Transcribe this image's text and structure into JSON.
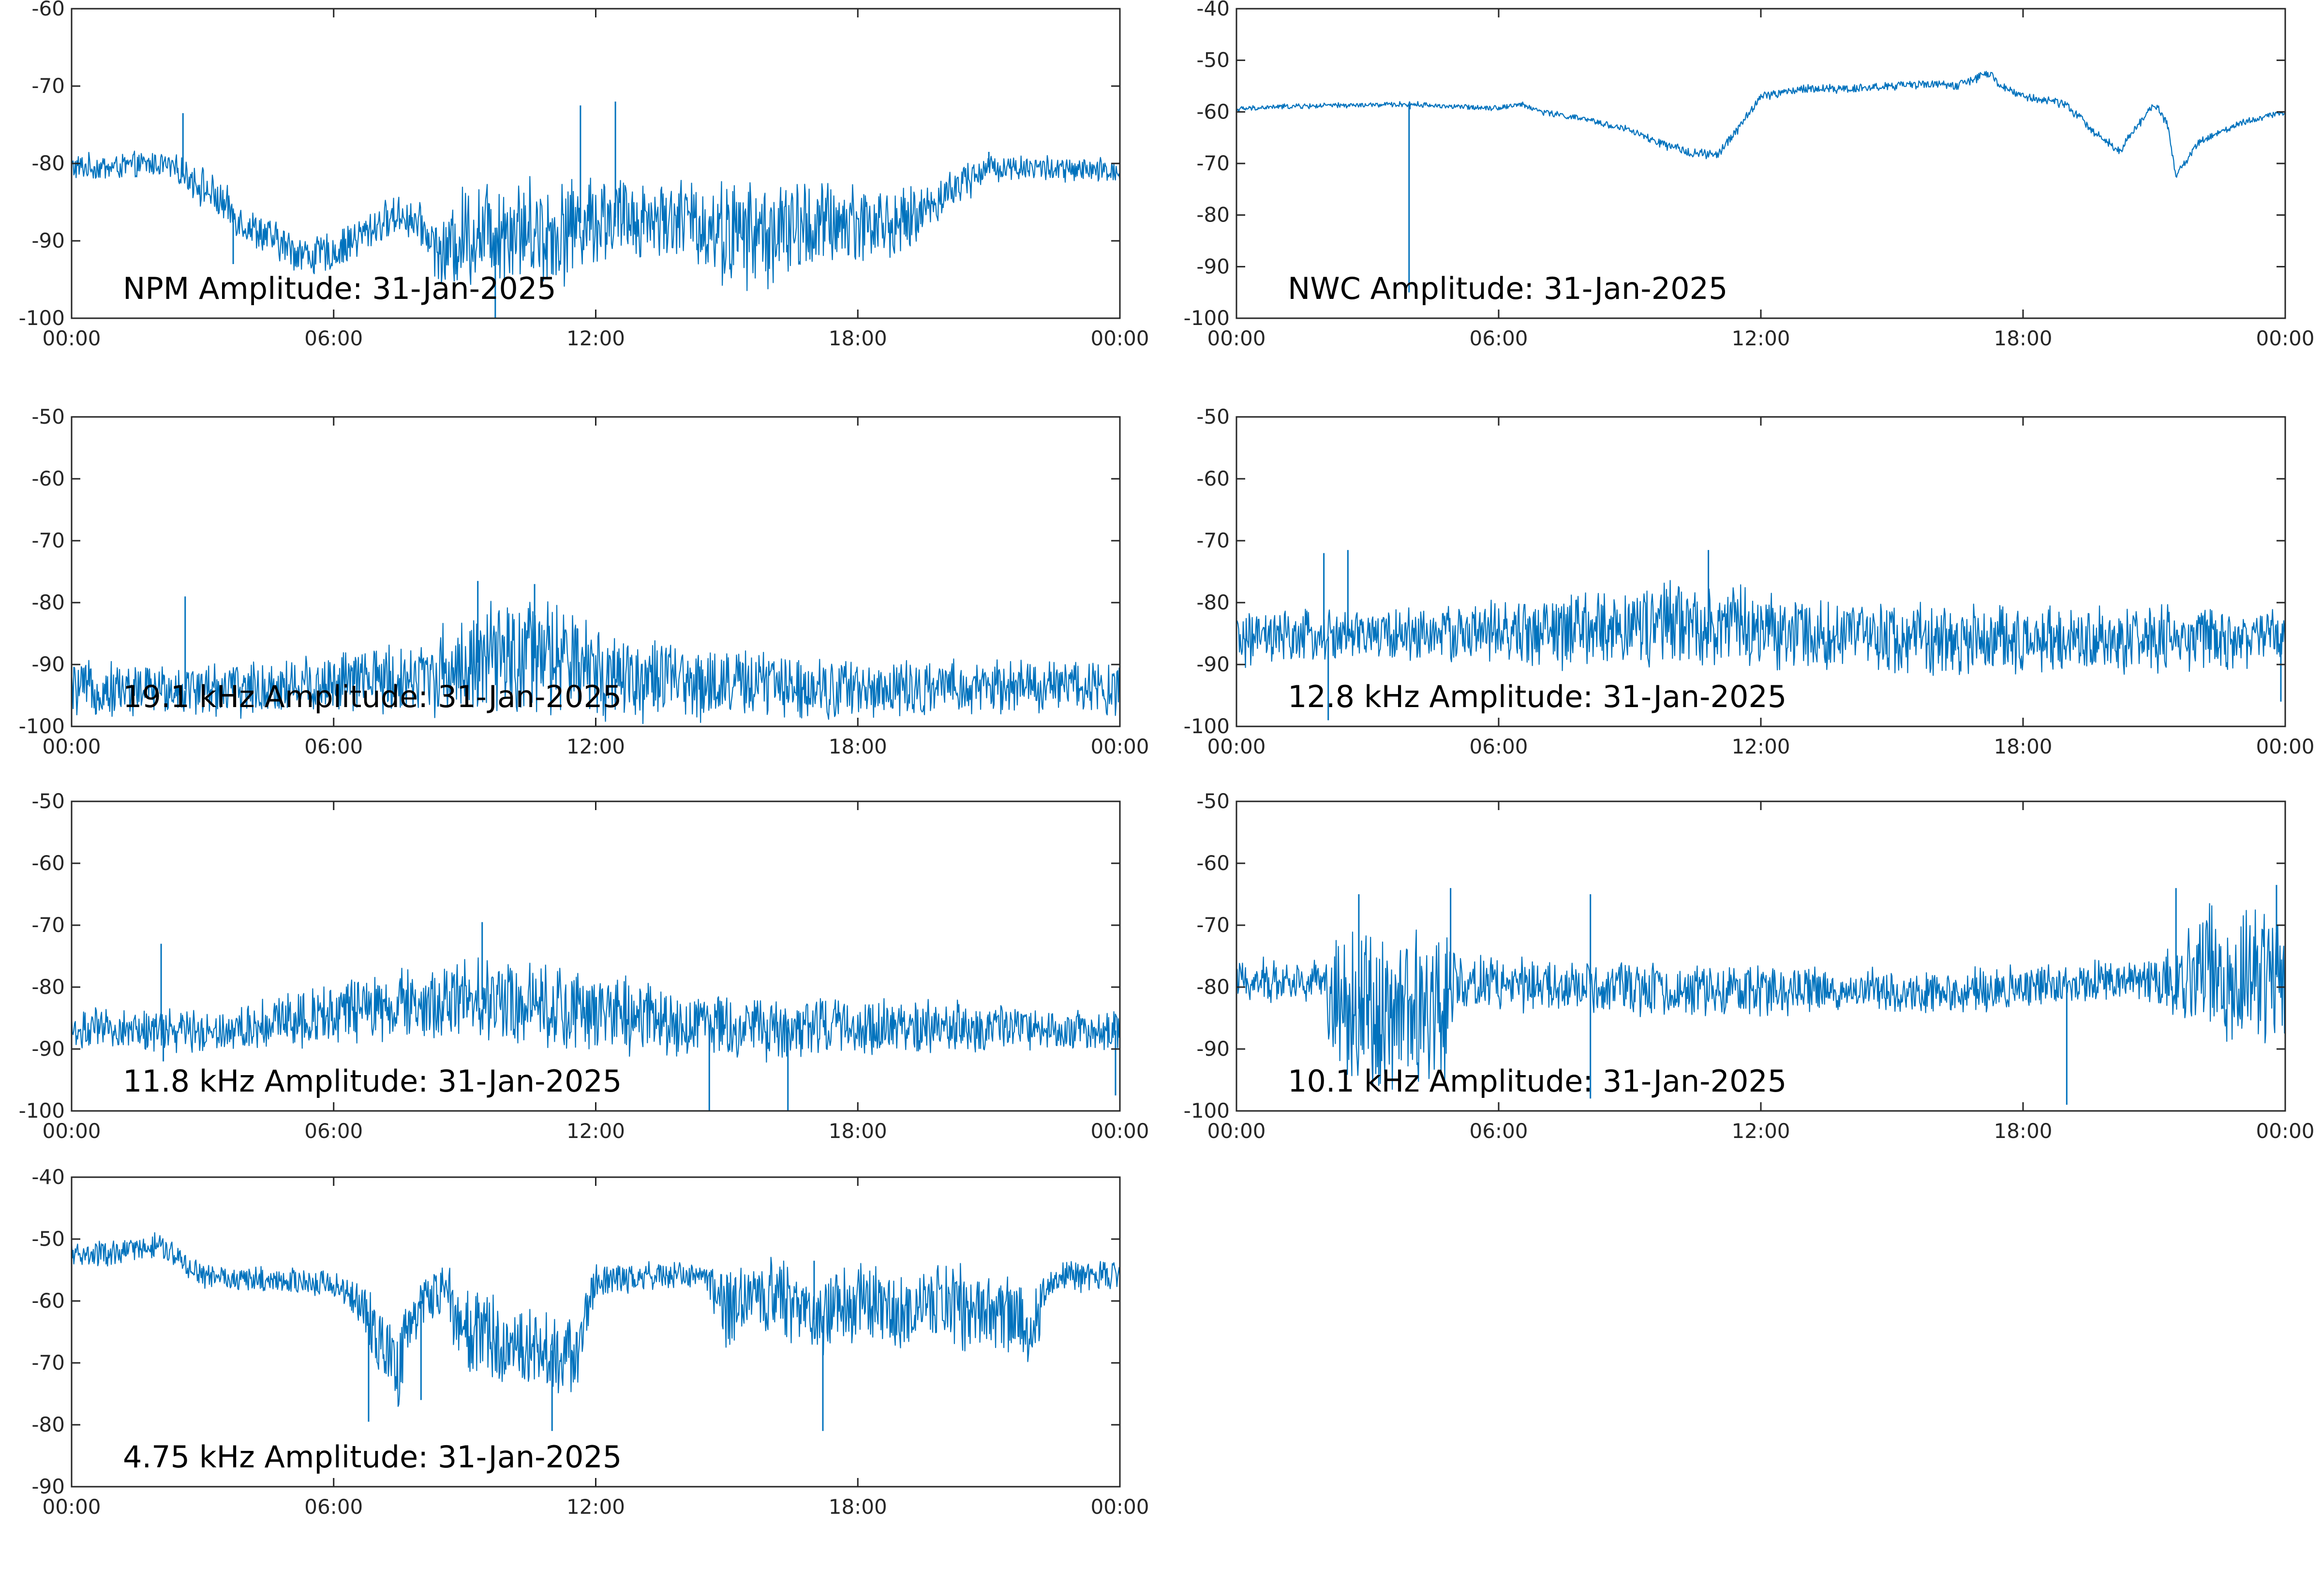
{
  "figure": {
    "background": "#ffffff",
    "line_color": "#0072BD"
  },
  "chart_data": [
    {
      "type": "line",
      "title": "NPM Amplitude: 31-Jan-2025",
      "xlabel": "",
      "ylabel": "",
      "xlim": [
        "00:00",
        "24:00"
      ],
      "xtick_labels": [
        "00:00",
        "06:00",
        "12:00",
        "18:00",
        "00:00"
      ],
      "ylim": [
        -100,
        -60
      ],
      "ytick_labels": [
        "-100",
        "-90",
        "-80",
        "-70",
        "-60"
      ],
      "grid": false,
      "series": [
        {
          "x_hours": [
            0,
            1,
            2,
            2.5,
            3,
            4,
            5,
            5.5,
            6,
            7,
            7.5,
            8,
            8.5,
            9,
            10,
            11,
            12,
            13,
            14,
            15,
            16,
            17,
            18,
            19,
            20,
            20.5,
            21,
            22,
            23,
            24
          ],
          "center": [
            -80.5,
            -80.5,
            -80,
            -81,
            -83,
            -88,
            -91,
            -92,
            -91.5,
            -88,
            -86.5,
            -88,
            -92,
            -89,
            -88,
            -89,
            -87,
            -87,
            -87,
            -89,
            -89,
            -88,
            -87.5,
            -88,
            -84,
            -82,
            -80.5,
            -80.5,
            -81,
            -81
          ],
          "spread": [
            2,
            2,
            2,
            2,
            3,
            3,
            3,
            3,
            3,
            3,
            3,
            3,
            5,
            8,
            8,
            8,
            7,
            6,
            6,
            8,
            8,
            7,
            6,
            5,
            3,
            3,
            2,
            2,
            2,
            2
          ],
          "spikes": [
            {
              "x_hours": 2.55,
              "y": -73.5
            },
            {
              "x_hours": 3.7,
              "y": -93
            },
            {
              "x_hours": 11.65,
              "y": -72.5
            },
            {
              "x_hours": 12.45,
              "y": -72
            },
            {
              "x_hours": 9.7,
              "y": -100
            },
            {
              "x_hours": 21.0,
              "y": -78.5
            }
          ]
        }
      ]
    },
    {
      "type": "line",
      "title": "NWC Amplitude: 31-Jan-2025",
      "xlabel": "",
      "ylabel": "",
      "xlim": [
        "00:00",
        "24:00"
      ],
      "xtick_labels": [
        "00:00",
        "06:00",
        "12:00",
        "18:00",
        "00:00"
      ],
      "ylim": [
        -100,
        -40
      ],
      "ytick_labels": [
        "-100",
        "-90",
        "-80",
        "-70",
        "-60",
        "-50",
        "-40"
      ],
      "grid": false,
      "series": [
        {
          "x_hours": [
            0,
            1,
            2,
            3,
            4,
            5,
            6,
            6.5,
            7,
            8,
            9,
            9.5,
            10,
            10.5,
            11,
            11.5,
            12,
            13,
            14,
            15,
            16,
            16.5,
            17.2,
            17.5,
            18,
            19,
            19.5,
            20.2,
            20.6,
            21,
            21.3,
            21.5,
            22,
            23,
            24
          ],
          "center": [
            -59.5,
            -59,
            -58.8,
            -58.7,
            -58.5,
            -59,
            -59.2,
            -58.5,
            -60,
            -61.5,
            -63.5,
            -65.5,
            -67,
            -68,
            -68.5,
            -63,
            -57,
            -55.5,
            -55.5,
            -55,
            -54.5,
            -55,
            -52.5,
            -55,
            -57,
            -58.5,
            -63,
            -67.5,
            -63,
            -58.5,
            -62,
            -72.5,
            -66,
            -62,
            -60
          ],
          "spread": [
            0.6,
            0.6,
            0.6,
            0.6,
            0.6,
            0.6,
            0.6,
            0.6,
            0.7,
            0.7,
            0.8,
            1,
            1,
            1.2,
            1.2,
            1,
            1,
            1,
            1,
            1,
            1,
            1,
            1,
            1,
            1,
            1,
            1,
            1,
            1,
            1,
            1,
            1,
            0.8,
            0.7,
            0.7
          ],
          "spikes": [
            {
              "x_hours": 3.95,
              "y": -95
            },
            {
              "x_hours": 3.97,
              "y": -59.5
            }
          ]
        }
      ]
    },
    {
      "type": "line",
      "title": "19.1 kHz Amplitude: 31-Jan-2025",
      "xlabel": "",
      "ylabel": "",
      "xlim": [
        "00:00",
        "24:00"
      ],
      "xtick_labels": [
        "00:00",
        "06:00",
        "12:00",
        "18:00",
        "00:00"
      ],
      "ylim": [
        -100,
        -50
      ],
      "ytick_labels": [
        "-100",
        "-90",
        "-80",
        "-70",
        "-60",
        "-50"
      ],
      "grid": false,
      "series": [
        {
          "x_hours": [
            0,
            2,
            4,
            6,
            8,
            9,
            10,
            11,
            12,
            13,
            14,
            16,
            18,
            20,
            22,
            24
          ],
          "center": [
            -94,
            -94,
            -94,
            -93,
            -92,
            -90,
            -89,
            -89,
            -91,
            -92,
            -93,
            -93,
            -94,
            -94,
            -93.5,
            -93.5
          ],
          "spread": [
            5,
            5,
            5,
            6,
            7,
            9,
            11,
            11,
            9,
            8,
            7,
            6,
            6,
            5,
            5,
            5
          ],
          "spikes": [
            {
              "x_hours": 2.6,
              "y": -79
            },
            {
              "x_hours": 9.3,
              "y": -76.5
            },
            {
              "x_hours": 10.6,
              "y": -77
            }
          ]
        }
      ]
    },
    {
      "type": "line",
      "title": "12.8 kHz Amplitude: 31-Jan-2025",
      "xlabel": "",
      "ylabel": "",
      "xlim": [
        "00:00",
        "24:00"
      ],
      "xtick_labels": [
        "00:00",
        "06:00",
        "12:00",
        "18:00",
        "00:00"
      ],
      "ylim": [
        -100,
        -50
      ],
      "ytick_labels": [
        "-100",
        "-90",
        "-80",
        "-70",
        "-60",
        "-50"
      ],
      "grid": false,
      "series": [
        {
          "x_hours": [
            0,
            2,
            4,
            6,
            8,
            9,
            10,
            11,
            12,
            13,
            14,
            16,
            18,
            20,
            22,
            24
          ],
          "center": [
            -86,
            -85.5,
            -85,
            -85,
            -84.5,
            -84,
            -83.5,
            -83.5,
            -84.5,
            -85,
            -85.5,
            -86,
            -86,
            -86,
            -86,
            -85.5
          ],
          "spread": [
            5,
            5,
            5,
            6,
            7,
            8,
            8,
            8,
            7,
            7,
            7,
            7,
            6,
            6,
            6,
            5
          ],
          "spikes": [
            {
              "x_hours": 2.0,
              "y": -72
            },
            {
              "x_hours": 2.1,
              "y": -99
            },
            {
              "x_hours": 2.55,
              "y": -71.5
            },
            {
              "x_hours": 10.8,
              "y": -71.5
            },
            {
              "x_hours": 23.9,
              "y": -96
            }
          ]
        }
      ]
    },
    {
      "type": "line",
      "title": "11.8 kHz Amplitude: 31-Jan-2025",
      "xlabel": "",
      "ylabel": "",
      "xlim": [
        "00:00",
        "24:00"
      ],
      "xtick_labels": [
        "00:00",
        "06:00",
        "12:00",
        "18:00",
        "00:00"
      ],
      "ylim": [
        -100,
        -50
      ],
      "ytick_labels": [
        "-100",
        "-90",
        "-80",
        "-70",
        "-60",
        "-50"
      ],
      "grid": false,
      "series": [
        {
          "x_hours": [
            0,
            2,
            3,
            4,
            5,
            6,
            8,
            9,
            10,
            11,
            12,
            13,
            14,
            16,
            18,
            20,
            22,
            24
          ],
          "center": [
            -87,
            -87,
            -87,
            -86.5,
            -85,
            -84,
            -83,
            -82,
            -82,
            -83,
            -84.5,
            -85,
            -86,
            -86.5,
            -86.5,
            -86.5,
            -87,
            -87
          ],
          "spread": [
            4,
            4,
            4,
            4,
            5,
            6,
            7,
            8,
            8,
            8,
            7,
            7,
            6,
            6,
            5,
            5,
            4,
            4
          ],
          "spikes": [
            {
              "x_hours": 2.05,
              "y": -73
            },
            {
              "x_hours": 2.1,
              "y": -92
            },
            {
              "x_hours": 9.4,
              "y": -69.5
            },
            {
              "x_hours": 14.6,
              "y": -100
            },
            {
              "x_hours": 16.4,
              "y": -100
            },
            {
              "x_hours": 23.9,
              "y": -97.5
            }
          ]
        }
      ]
    },
    {
      "type": "line",
      "title": "10.1 kHz Amplitude: 31-Jan-2025",
      "xlabel": "",
      "ylabel": "",
      "xlim": [
        "00:00",
        "24:00"
      ],
      "xtick_labels": [
        "00:00",
        "06:00",
        "12:00",
        "18:00",
        "00:00"
      ],
      "ylim": [
        -100,
        -50
      ],
      "ytick_labels": [
        "-100",
        "-90",
        "-80",
        "-70",
        "-60",
        "-50"
      ],
      "grid": false,
      "series": [
        {
          "x_hours": [
            0,
            2,
            2.2,
            3,
            4,
            4.8,
            5,
            6,
            8,
            10,
            12,
            14,
            16,
            18,
            20,
            21,
            22,
            23,
            24
          ],
          "center": [
            -79,
            -79,
            -82,
            -84,
            -84,
            -82,
            -79,
            -79.5,
            -80.5,
            -80.5,
            -80.5,
            -80.5,
            -81,
            -80,
            -79,
            -79,
            -78,
            -78,
            -78
          ],
          "spread": [
            4,
            4,
            14,
            15,
            15,
            14,
            6,
            5,
            5,
            5,
            5,
            4,
            4,
            4,
            4,
            4,
            12,
            14,
            14
          ],
          "spikes": [
            {
              "x_hours": 2.8,
              "y": -65
            },
            {
              "x_hours": 4.9,
              "y": -64
            },
            {
              "x_hours": 8.1,
              "y": -65
            },
            {
              "x_hours": 8.1,
              "y": -98
            },
            {
              "x_hours": 19.0,
              "y": -99
            },
            {
              "x_hours": 21.5,
              "y": -64
            },
            {
              "x_hours": 23.8,
              "y": -63.5
            }
          ]
        }
      ]
    },
    {
      "type": "line",
      "title": "4.75 kHz Amplitude: 31-Jan-2025",
      "xlabel": "",
      "ylabel": "",
      "xlim": [
        "00:00",
        "24:00"
      ],
      "xtick_labels": [
        "00:00",
        "06:00",
        "12:00",
        "18:00",
        "00:00"
      ],
      "ylim": [
        -90,
        -40
      ],
      "ytick_labels": [
        "-90",
        "-80",
        "-70",
        "-60",
        "-50",
        "-40"
      ],
      "grid": false,
      "series": [
        {
          "x_hours": [
            0,
            1,
            2,
            2.5,
            3,
            4,
            5,
            6,
            6.5,
            7,
            7.5,
            8,
            8.5,
            9,
            10,
            11,
            11.5,
            12,
            13,
            14,
            14.5,
            15,
            16,
            17,
            18,
            19,
            20,
            21,
            22,
            22.5,
            23,
            24
          ],
          "center": [
            -52.5,
            -52.5,
            -51,
            -53.5,
            -56,
            -56.5,
            -57,
            -57,
            -60,
            -66,
            -70,
            -60,
            -58,
            -65,
            -67,
            -68,
            -69,
            -57,
            -56,
            -56,
            -56,
            -62,
            -59,
            -63,
            -60,
            -62,
            -60,
            -62,
            -64,
            -56,
            -56,
            -56
          ],
          "spread": [
            2.5,
            2.5,
            2.5,
            2.5,
            2.5,
            2.5,
            2.5,
            2.5,
            4,
            7,
            8,
            5,
            5,
            8,
            8,
            8,
            8,
            3,
            2.5,
            2.5,
            2.5,
            8,
            7,
            8,
            7,
            8,
            7,
            8,
            8,
            3,
            3,
            3
          ],
          "spikes": [
            {
              "x_hours": 6.8,
              "y": -79.5
            },
            {
              "x_hours": 11.0,
              "y": -81
            },
            {
              "x_hours": 17.2,
              "y": -81
            },
            {
              "x_hours": 8.0,
              "y": -76
            },
            {
              "x_hours": 17.0,
              "y": -53.5
            }
          ]
        }
      ]
    }
  ]
}
